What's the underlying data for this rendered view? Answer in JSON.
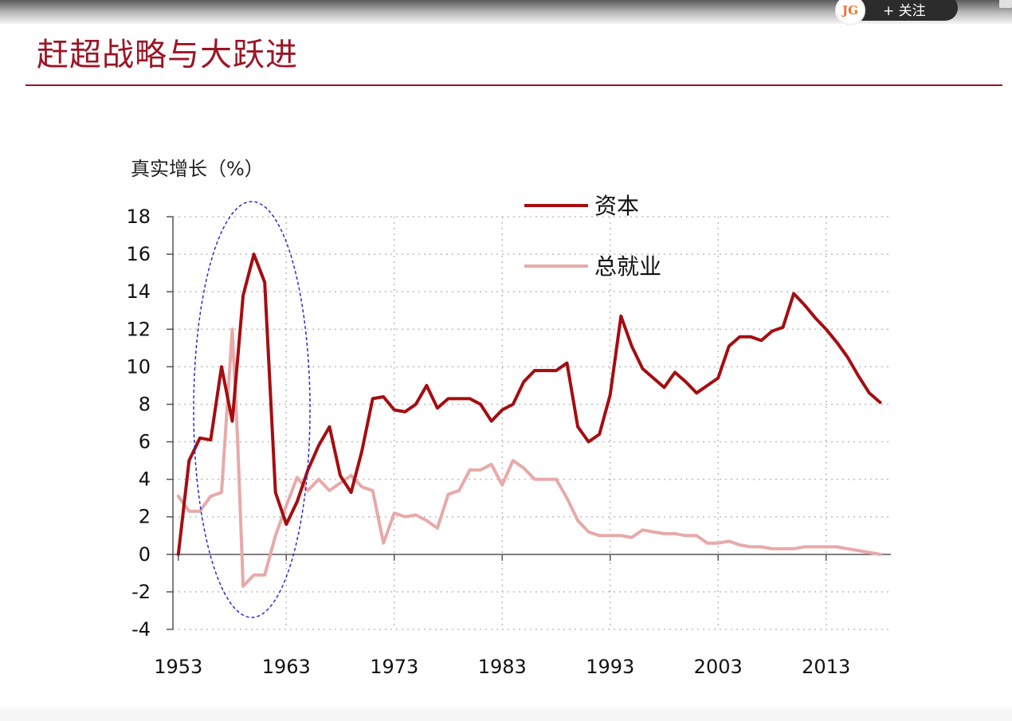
{
  "page": {
    "title": "赶超战略与大跃进",
    "follow_label": "+ 关注",
    "avatar_text": "JG"
  },
  "colors": {
    "title": "#9c1525",
    "capital": "#a50d10",
    "employment": "#e8a9a9",
    "highlight_ellipse": "#2a2ad8"
  },
  "icons": [
    "avatar-icon",
    "menu-icon"
  ],
  "chart_data": {
    "type": "line",
    "title": "",
    "ylabel": "真实增长（%）",
    "xlabel": "",
    "ylim": [
      -4,
      18
    ],
    "yticks": [
      18,
      16,
      14,
      12,
      10,
      8,
      6,
      4,
      2,
      0,
      -2,
      -4
    ],
    "xticks": [
      1953,
      1963,
      1973,
      1983,
      1993,
      2003,
      2013
    ],
    "xlim": [
      1952.5,
      2019
    ],
    "grid": "dotted",
    "legend_position": "top-right",
    "highlight": "dashed ellipse around 1957-1964",
    "series": [
      {
        "name": "资本",
        "color": "#a50d10",
        "x": [
          1953,
          1954,
          1955,
          1956,
          1957,
          1958,
          1959,
          1960,
          1961,
          1962,
          1963,
          1964,
          1965,
          1966,
          1967,
          1968,
          1969,
          1970,
          1971,
          1972,
          1973,
          1974,
          1975,
          1976,
          1977,
          1978,
          1979,
          1980,
          1981,
          1982,
          1983,
          1984,
          1985,
          1986,
          1987,
          1988,
          1989,
          1990,
          1991,
          1992,
          1993,
          1994,
          1995,
          1996,
          1997,
          1998,
          1999,
          2000,
          2001,
          2002,
          2003,
          2004,
          2005,
          2006,
          2007,
          2008,
          2009,
          2010,
          2011,
          2012,
          2013,
          2014,
          2015,
          2016,
          2017,
          2018
        ],
        "values": [
          0,
          5,
          6.2,
          6.1,
          10,
          7.1,
          13.8,
          16,
          14.5,
          3.3,
          1.6,
          2.8,
          4.5,
          5.8,
          6.8,
          4.2,
          3.3,
          5.5,
          8.3,
          8.4,
          7.7,
          7.6,
          8,
          9,
          7.8,
          8.3,
          8.3,
          8.3,
          8,
          7.1,
          7.7,
          8,
          9.2,
          9.8,
          9.8,
          9.8,
          10.2,
          6.8,
          6,
          6.4,
          8.5,
          12.7,
          11.1,
          9.9,
          9.4,
          8.9,
          9.7,
          9.2,
          8.6,
          9,
          9.4,
          11.1,
          11.6,
          11.6,
          11.4,
          11.9,
          12.1,
          13.9,
          13.3,
          12.6,
          12,
          11.3,
          10.5,
          9.5,
          8.6,
          8.1
        ]
      },
      {
        "name": "总就业",
        "color": "#e8a9a9",
        "x": [
          1953,
          1954,
          1955,
          1956,
          1957,
          1958,
          1958.5,
          1959,
          1960,
          1961,
          1962,
          1963,
          1964,
          1965,
          1966,
          1967,
          1968,
          1969,
          1970,
          1971,
          1972,
          1973,
          1974,
          1975,
          1976,
          1977,
          1978,
          1979,
          1980,
          1981,
          1982,
          1983,
          1984,
          1985,
          1986,
          1987,
          1988,
          1989,
          1990,
          1991,
          1992,
          1993,
          1994,
          1995,
          1996,
          1997,
          1998,
          1999,
          2000,
          2001,
          2002,
          2003,
          2004,
          2005,
          2006,
          2007,
          2008,
          2009,
          2010,
          2011,
          2012,
          2013,
          2014,
          2015,
          2016,
          2017,
          2018
        ],
        "values": [
          3.1,
          2.3,
          2.3,
          3.1,
          3.3,
          12,
          6,
          -1.7,
          -1.1,
          -1.1,
          1,
          2.6,
          4.1,
          3.4,
          4,
          3.4,
          3.8,
          4.2,
          3.6,
          3.4,
          0.6,
          2.2,
          2,
          2.1,
          1.8,
          1.4,
          3.2,
          3.4,
          4.5,
          4.5,
          4.8,
          3.7,
          5,
          4.6,
          4,
          4,
          4,
          3,
          1.8,
          1.2,
          1,
          1,
          1,
          0.9,
          1.3,
          1.2,
          1.1,
          1.1,
          1,
          1,
          0.6,
          0.6,
          0.7,
          0.5,
          0.4,
          0.4,
          0.3,
          0.3,
          0.3,
          0.4,
          0.4,
          0.4,
          0.4,
          0.3,
          0.2,
          0.1,
          0
        ]
      }
    ]
  }
}
